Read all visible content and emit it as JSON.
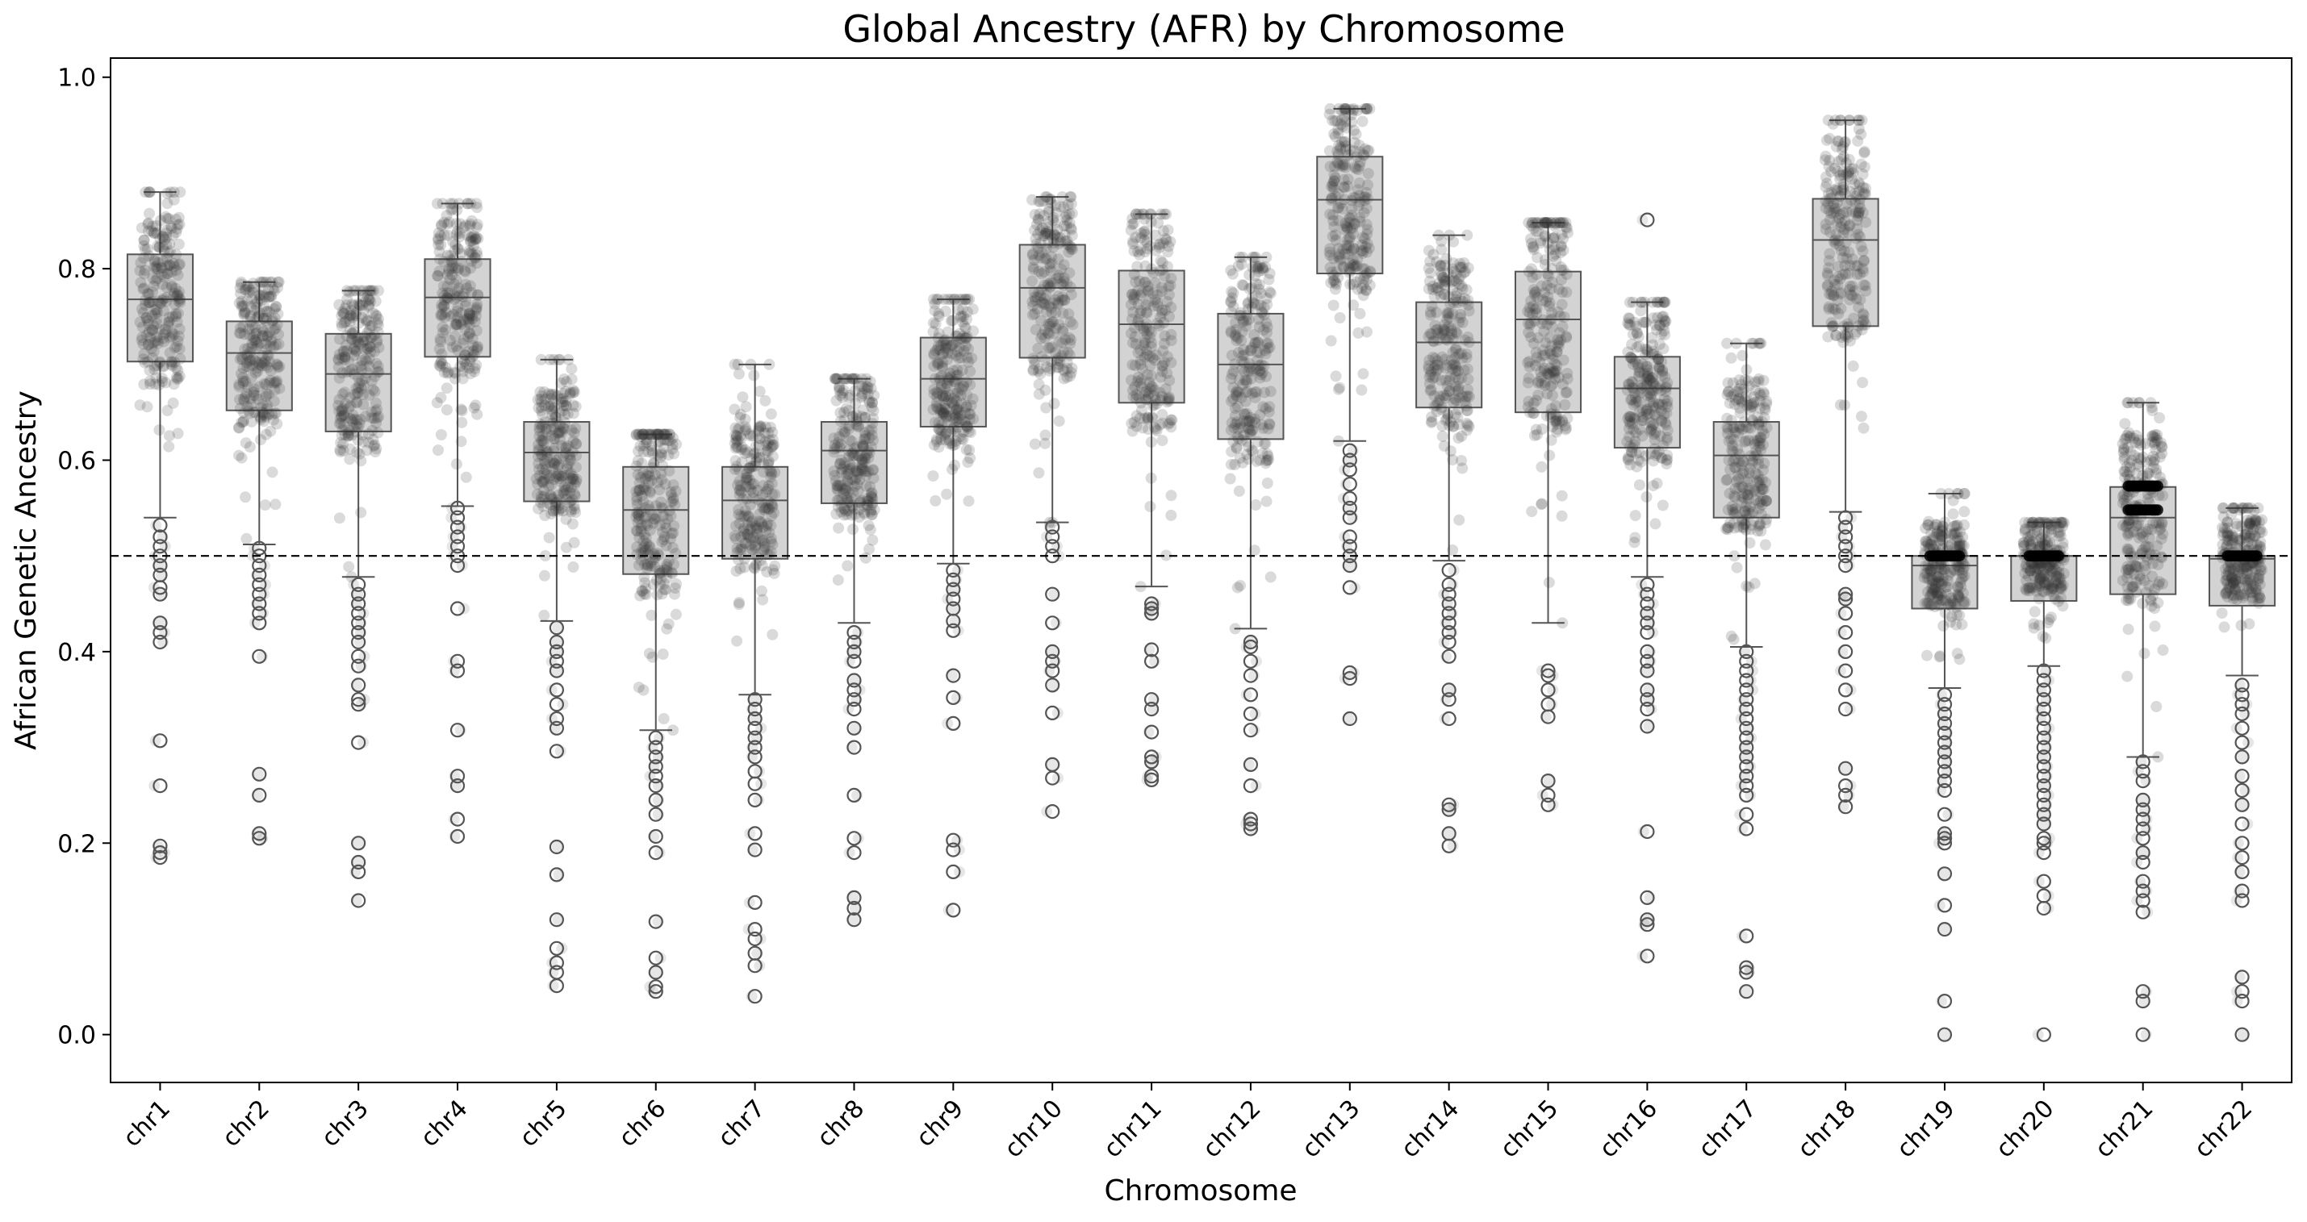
{
  "chart_data": {
    "type": "box",
    "title": "Global Ancestry (AFR) by Chromosome",
    "xlabel": "Chromosome",
    "ylabel": "African Genetic Ancestry",
    "ylim": [
      -0.05,
      1.02
    ],
    "yticks": [
      0.0,
      0.2,
      0.4,
      0.6,
      0.8,
      1.0
    ],
    "ytick_labels": [
      "0.0",
      "0.2",
      "0.4",
      "0.6",
      "0.8",
      "1.0"
    ],
    "reference_line": {
      "y": 0.5,
      "style": "dashed",
      "color": "#000000"
    },
    "grid": false,
    "box_color": "#d3d3d3",
    "edge_color": "#555555",
    "point_color": "#333333",
    "categories": [
      "chr1",
      "chr2",
      "chr3",
      "chr4",
      "chr5",
      "chr6",
      "chr7",
      "chr8",
      "chr9",
      "chr10",
      "chr11",
      "chr12",
      "chr13",
      "chr14",
      "chr15",
      "chr16",
      "chr17",
      "chr18",
      "chr19",
      "chr20",
      "chr21",
      "chr22"
    ],
    "boxes": [
      {
        "whisker_low": 0.54,
        "q1": 0.703,
        "median": 0.768,
        "q3": 0.815,
        "whisker_high": 0.88,
        "outliers": [
          0.532,
          0.52,
          0.51,
          0.5,
          0.49,
          0.48,
          0.467,
          0.46,
          0.43,
          0.42,
          0.41,
          0.307,
          0.26,
          0.197,
          0.19,
          0.185
        ]
      },
      {
        "whisker_low": 0.512,
        "q1": 0.652,
        "median": 0.712,
        "q3": 0.745,
        "whisker_high": 0.786,
        "outliers": [
          0.508,
          0.5,
          0.49,
          0.48,
          0.47,
          0.46,
          0.45,
          0.44,
          0.43,
          0.395,
          0.272,
          0.25,
          0.21,
          0.205
        ]
      },
      {
        "whisker_low": 0.478,
        "q1": 0.63,
        "median": 0.69,
        "q3": 0.732,
        "whisker_high": 0.777,
        "outliers": [
          0.47,
          0.46,
          0.45,
          0.44,
          0.43,
          0.42,
          0.41,
          0.395,
          0.385,
          0.365,
          0.35,
          0.345,
          0.305,
          0.2,
          0.18,
          0.17,
          0.14
        ]
      },
      {
        "whisker_low": 0.552,
        "q1": 0.708,
        "median": 0.77,
        "q3": 0.81,
        "whisker_high": 0.868,
        "outliers": [
          0.55,
          0.54,
          0.53,
          0.52,
          0.51,
          0.5,
          0.49,
          0.445,
          0.39,
          0.38,
          0.318,
          0.27,
          0.26,
          0.225,
          0.207
        ]
      },
      {
        "whisker_low": 0.432,
        "q1": 0.557,
        "median": 0.608,
        "q3": 0.64,
        "whisker_high": 0.705,
        "outliers": [
          0.425,
          0.41,
          0.4,
          0.39,
          0.38,
          0.36,
          0.345,
          0.33,
          0.32,
          0.296,
          0.196,
          0.167,
          0.12,
          0.09,
          0.075,
          0.065,
          0.051
        ]
      },
      {
        "whisker_low": 0.318,
        "q1": 0.481,
        "median": 0.548,
        "q3": 0.593,
        "whisker_high": 0.627,
        "outliers": [
          0.31,
          0.3,
          0.29,
          0.28,
          0.27,
          0.26,
          0.245,
          0.23,
          0.207,
          0.19,
          0.118,
          0.08,
          0.065,
          0.05,
          0.045
        ]
      },
      {
        "whisker_low": 0.355,
        "q1": 0.497,
        "median": 0.558,
        "q3": 0.593,
        "whisker_high": 0.7,
        "outliers": [
          0.35,
          0.34,
          0.33,
          0.32,
          0.31,
          0.3,
          0.29,
          0.275,
          0.262,
          0.245,
          0.21,
          0.193,
          0.138,
          0.11,
          0.1,
          0.085,
          0.072,
          0.04
        ]
      },
      {
        "whisker_low": 0.43,
        "q1": 0.555,
        "median": 0.61,
        "q3": 0.64,
        "whisker_high": 0.685,
        "outliers": [
          0.42,
          0.41,
          0.4,
          0.39,
          0.37,
          0.36,
          0.35,
          0.34,
          0.32,
          0.3,
          0.25,
          0.205,
          0.19,
          0.143,
          0.132,
          0.12
        ]
      },
      {
        "whisker_low": 0.492,
        "q1": 0.635,
        "median": 0.685,
        "q3": 0.728,
        "whisker_high": 0.768,
        "outliers": [
          0.485,
          0.475,
          0.465,
          0.455,
          0.445,
          0.432,
          0.422,
          0.375,
          0.352,
          0.325,
          0.203,
          0.193,
          0.17,
          0.13
        ]
      },
      {
        "whisker_low": 0.535,
        "q1": 0.707,
        "median": 0.78,
        "q3": 0.825,
        "whisker_high": 0.875,
        "outliers": [
          0.53,
          0.52,
          0.51,
          0.5,
          0.46,
          0.43,
          0.4,
          0.39,
          0.38,
          0.365,
          0.336,
          0.282,
          0.268,
          0.233
        ]
      },
      {
        "whisker_low": 0.468,
        "q1": 0.66,
        "median": 0.742,
        "q3": 0.798,
        "whisker_high": 0.857,
        "outliers": [
          0.45,
          0.445,
          0.44,
          0.402,
          0.39,
          0.35,
          0.34,
          0.316,
          0.29,
          0.285,
          0.27,
          0.266
        ]
      },
      {
        "whisker_low": 0.424,
        "q1": 0.622,
        "median": 0.7,
        "q3": 0.753,
        "whisker_high": 0.812,
        "outliers": [
          0.41,
          0.405,
          0.39,
          0.375,
          0.355,
          0.335,
          0.318,
          0.282,
          0.26,
          0.225,
          0.22,
          0.215
        ]
      },
      {
        "whisker_low": 0.62,
        "q1": 0.795,
        "median": 0.872,
        "q3": 0.917,
        "whisker_high": 0.967,
        "outliers": [
          0.61,
          0.6,
          0.59,
          0.575,
          0.56,
          0.55,
          0.54,
          0.52,
          0.51,
          0.5,
          0.49,
          0.467,
          0.378,
          0.372,
          0.33
        ]
      },
      {
        "whisker_low": 0.495,
        "q1": 0.655,
        "median": 0.723,
        "q3": 0.765,
        "whisker_high": 0.835,
        "outliers": [
          0.485,
          0.47,
          0.46,
          0.45,
          0.44,
          0.43,
          0.42,
          0.41,
          0.395,
          0.36,
          0.35,
          0.33,
          0.24,
          0.235,
          0.21,
          0.197
        ]
      },
      {
        "whisker_low": 0.43,
        "q1": 0.65,
        "median": 0.747,
        "q3": 0.797,
        "whisker_high": 0.848,
        "outliers": [
          0.38,
          0.375,
          0.36,
          0.345,
          0.332,
          0.265,
          0.25,
          0.24
        ]
      },
      {
        "whisker_low": 0.478,
        "q1": 0.613,
        "median": 0.675,
        "q3": 0.708,
        "whisker_high": 0.765,
        "outliers": [
          0.851,
          0.47,
          0.46,
          0.45,
          0.44,
          0.43,
          0.42,
          0.4,
          0.39,
          0.38,
          0.36,
          0.35,
          0.34,
          0.322,
          0.212,
          0.143,
          0.12,
          0.115,
          0.082
        ]
      },
      {
        "whisker_low": 0.405,
        "q1": 0.54,
        "median": 0.605,
        "q3": 0.64,
        "whisker_high": 0.722,
        "outliers": [
          0.4,
          0.39,
          0.38,
          0.37,
          0.36,
          0.35,
          0.34,
          0.33,
          0.32,
          0.31,
          0.3,
          0.29,
          0.28,
          0.27,
          0.26,
          0.25,
          0.23,
          0.215,
          0.103,
          0.07,
          0.065,
          0.045
        ]
      },
      {
        "whisker_low": 0.546,
        "q1": 0.74,
        "median": 0.83,
        "q3": 0.873,
        "whisker_high": 0.955,
        "outliers": [
          0.54,
          0.53,
          0.52,
          0.51,
          0.5,
          0.49,
          0.46,
          0.455,
          0.44,
          0.42,
          0.4,
          0.38,
          0.36,
          0.34,
          0.278,
          0.26,
          0.25,
          0.238
        ]
      },
      {
        "whisker_low": 0.362,
        "q1": 0.445,
        "median": 0.49,
        "q3": 0.5,
        "whisker_high": 0.565,
        "outliers": [
          0.355,
          0.345,
          0.335,
          0.325,
          0.315,
          0.305,
          0.295,
          0.285,
          0.275,
          0.265,
          0.255,
          0.23,
          0.21,
          0.205,
          0.2,
          0.168,
          0.135,
          0.11,
          0.035,
          0.0
        ]
      },
      {
        "whisker_low": 0.385,
        "q1": 0.453,
        "median": 0.5,
        "q3": 0.5,
        "whisker_high": 0.535,
        "outliers": [
          0.38,
          0.37,
          0.36,
          0.35,
          0.34,
          0.33,
          0.32,
          0.31,
          0.3,
          0.29,
          0.28,
          0.27,
          0.26,
          0.25,
          0.24,
          0.23,
          0.22,
          0.205,
          0.2,
          0.19,
          0.16,
          0.145,
          0.132,
          0.0
        ]
      },
      {
        "whisker_low": 0.29,
        "q1": 0.46,
        "median": 0.54,
        "q3": 0.572,
        "whisker_high": 0.66,
        "outliers": [
          0.285,
          0.275,
          0.265,
          0.245,
          0.235,
          0.225,
          0.215,
          0.205,
          0.19,
          0.18,
          0.16,
          0.15,
          0.14,
          0.128,
          0.045,
          0.035,
          0.0
        ]
      },
      {
        "whisker_low": 0.375,
        "q1": 0.448,
        "median": 0.497,
        "q3": 0.5,
        "whisker_high": 0.55,
        "outliers": [
          0.365,
          0.355,
          0.345,
          0.335,
          0.32,
          0.305,
          0.29,
          0.27,
          0.255,
          0.24,
          0.22,
          0.2,
          0.185,
          0.17,
          0.15,
          0.14,
          0.06,
          0.045,
          0.035,
          0.0
        ]
      }
    ],
    "dense_values": [
      [
        null
      ],
      [
        null
      ],
      [
        null
      ],
      [
        null
      ],
      [
        null
      ],
      [
        null
      ],
      [
        null
      ],
      [
        null
      ],
      [
        null
      ],
      [
        null
      ],
      [
        null
      ],
      [
        null
      ],
      [
        null
      ],
      [
        null
      ],
      [
        null
      ],
      [
        null
      ],
      [
        null
      ],
      [
        null
      ],
      [
        0.5
      ],
      [
        0.5
      ],
      [
        0.573,
        0.548
      ],
      [
        0.5
      ]
    ]
  }
}
